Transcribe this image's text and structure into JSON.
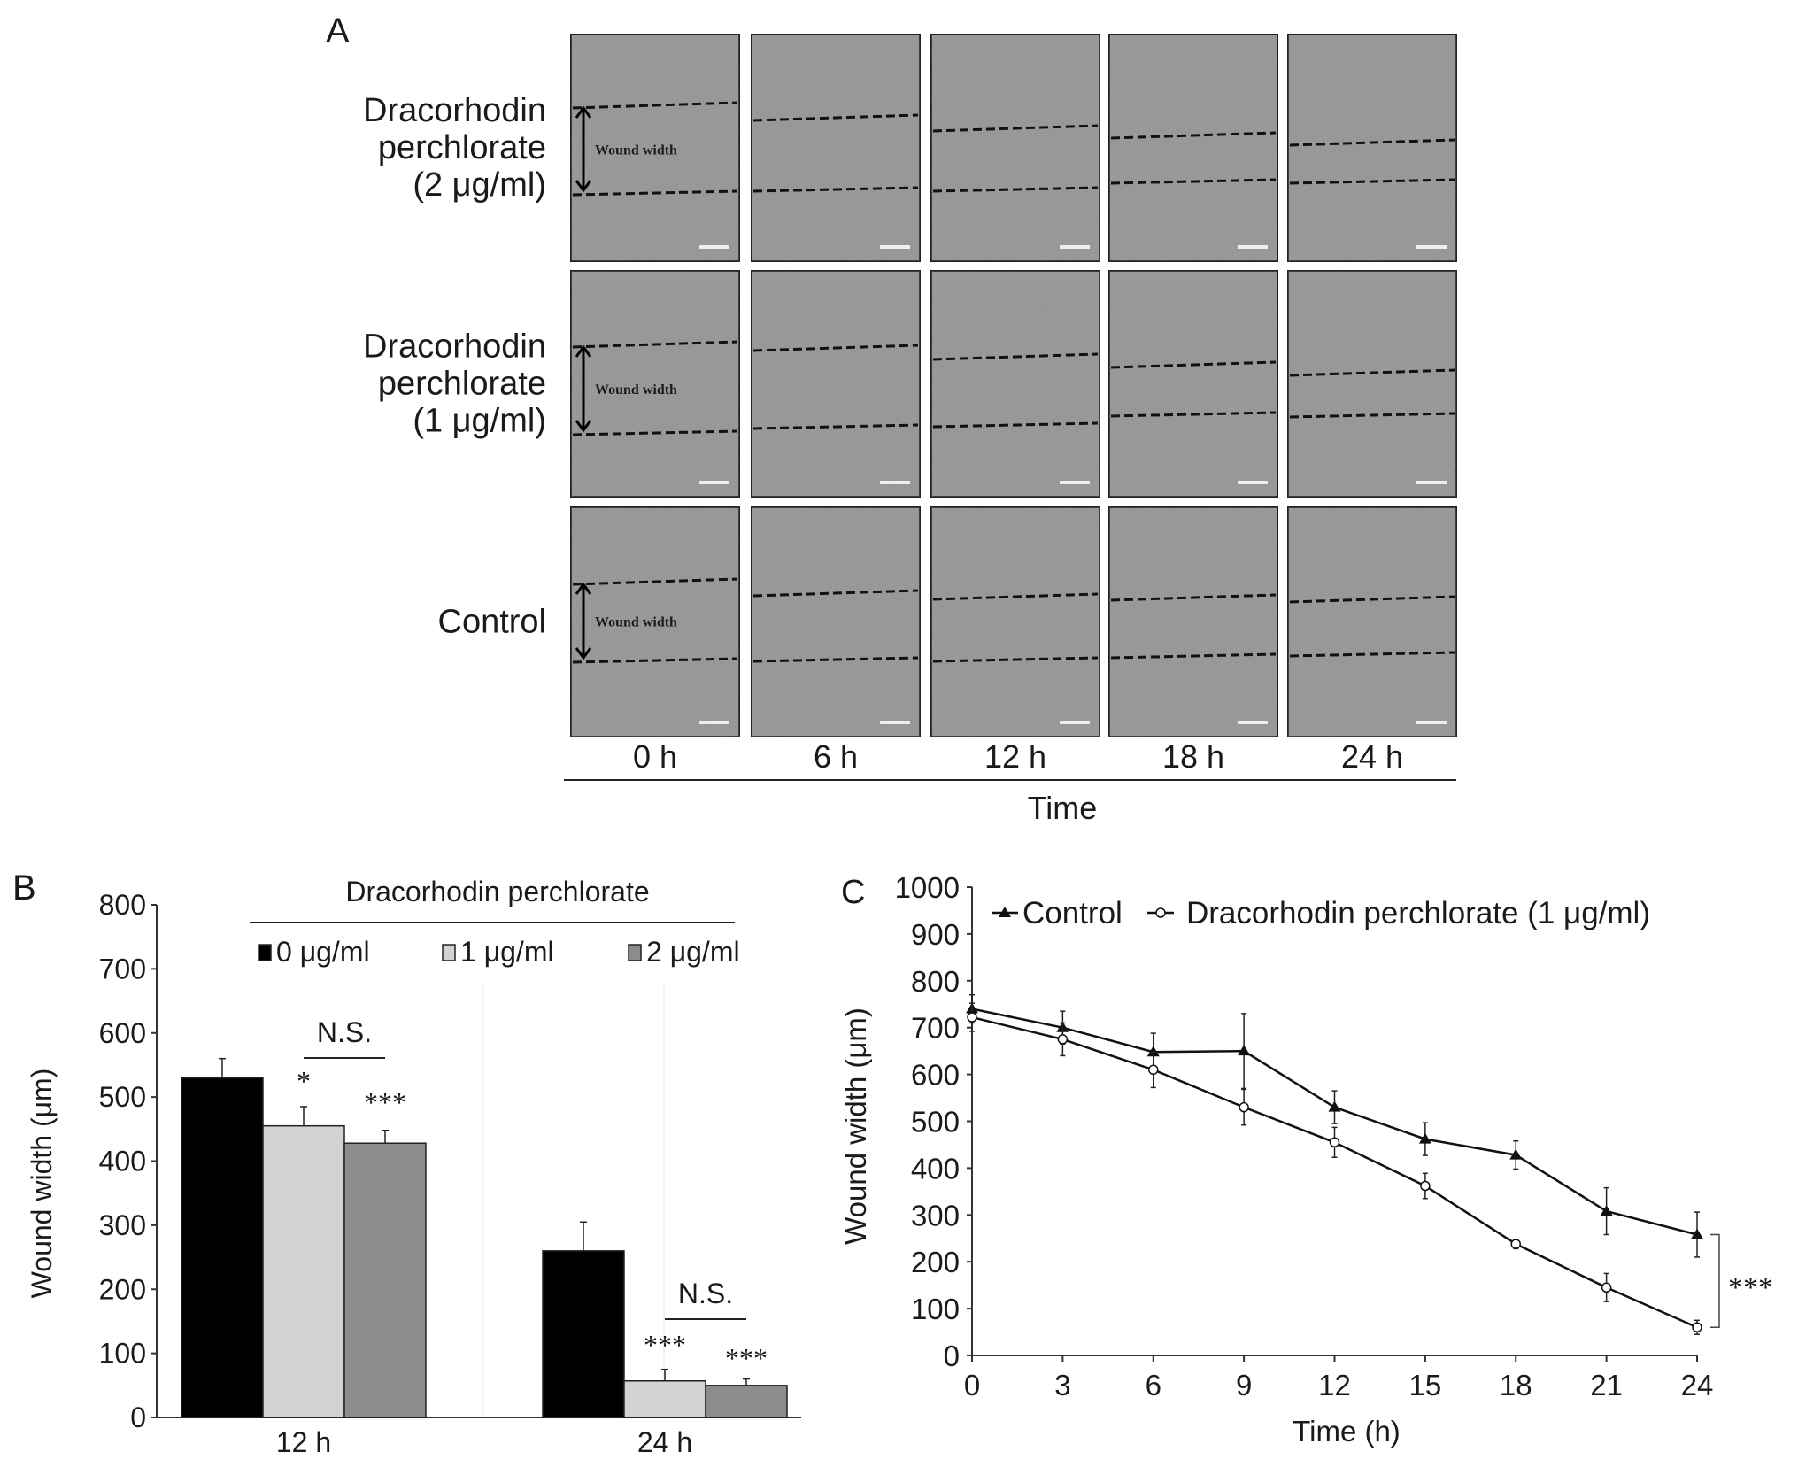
{
  "panel_a": {
    "label": "A",
    "rows": [
      {
        "label_lines": [
          "Dracorhodin",
          "perchlorate",
          "(2 μg/ml)"
        ],
        "annotation": "Wound width"
      },
      {
        "label_lines": [
          "Dracorhodin",
          "perchlorate",
          "(1 μg/ml)"
        ],
        "annotation": "Wound width"
      },
      {
        "label_lines": [
          "Control"
        ],
        "annotation": "Wound width"
      }
    ],
    "columns": [
      "0 h",
      "6 h",
      "12 h",
      "18 h",
      "24 h"
    ],
    "xlabel": "Time"
  },
  "chart_data": [
    {
      "panel": "B",
      "type": "bar",
      "title": "Dracorhodin perchlorate",
      "categories": [
        "12 h",
        "24 h"
      ],
      "ylabel": "Wound width (μm)",
      "ylim": [
        0,
        800
      ],
      "yticks": [
        0,
        100,
        200,
        300,
        400,
        500,
        600,
        700,
        800
      ],
      "legend_position": "top",
      "series": [
        {
          "name": "0 μg/ml",
          "color": "#000000",
          "values": [
            530,
            260
          ],
          "errors": [
            30,
            45
          ],
          "annotations": [
            "",
            ""
          ]
        },
        {
          "name": "1 μg/ml",
          "color": "#d3d3d3",
          "values": [
            455,
            57
          ],
          "errors": [
            30,
            18
          ],
          "annotations": [
            "*",
            "***"
          ]
        },
        {
          "name": "2 μg/ml",
          "color": "#8c8c8c",
          "values": [
            428,
            50
          ],
          "errors": [
            20,
            10
          ],
          "annotations": [
            "***",
            "***"
          ]
        }
      ],
      "brackets": [
        {
          "category": "12 h",
          "between": [
            "1 μg/ml",
            "2 μg/ml"
          ],
          "label": "N.S."
        },
        {
          "category": "24 h",
          "between": [
            "1 μg/ml",
            "2 μg/ml"
          ],
          "label": "N.S."
        }
      ]
    },
    {
      "panel": "C",
      "type": "line",
      "x": [
        0,
        3,
        6,
        9,
        12,
        15,
        18,
        21,
        24
      ],
      "xlabel": "Time (h)",
      "ylabel": "Wound width (μm)",
      "xlim": [
        0,
        24
      ],
      "ylim": [
        0,
        1000
      ],
      "yticks": [
        0,
        100,
        200,
        300,
        400,
        500,
        600,
        700,
        800,
        900,
        1000
      ],
      "legend_position": "top-left",
      "series": [
        {
          "name": "Control",
          "marker": "filled-triangle",
          "values": [
            740,
            700,
            648,
            650,
            530,
            462,
            428,
            308,
            258
          ],
          "errors": [
            30,
            35,
            40,
            80,
            35,
            35,
            30,
            50,
            48
          ]
        },
        {
          "name": "Dracorhodin perchlorate (1 μg/ml)",
          "marker": "open-circle",
          "values": [
            722,
            675,
            610,
            530,
            455,
            362,
            238,
            145,
            60
          ],
          "errors": [
            30,
            35,
            38,
            38,
            32,
            27,
            10,
            30,
            15
          ]
        }
      ],
      "significance": {
        "at_x": 24,
        "label": "***"
      }
    }
  ]
}
